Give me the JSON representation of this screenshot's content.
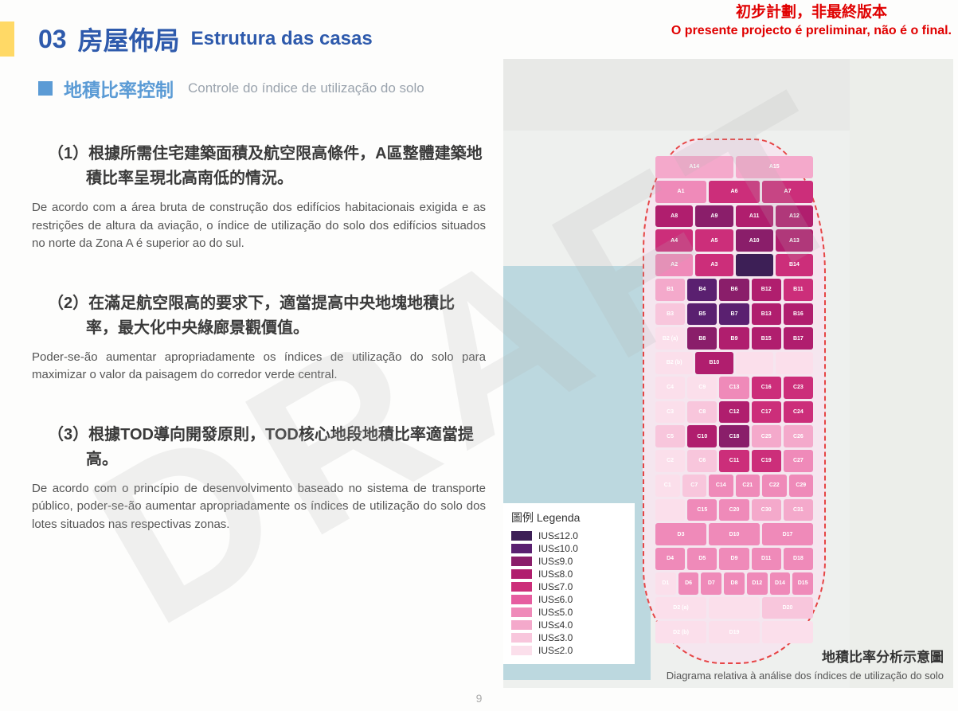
{
  "watermark": "DRAFT",
  "warning": {
    "zh": "初步計劃，非最終版本",
    "pt": "O presente projecto é preliminar, não é o final."
  },
  "title": {
    "number": "03",
    "zh": "房屋佈局",
    "pt": "Estrutura das casas"
  },
  "subtitle": {
    "zh": "地積比率控制",
    "pt": "Controle do  índice de utilização do solo"
  },
  "points": [
    {
      "zh": "（1）根據所需住宅建築面積及航空限高條件，A區整體建築地積比率呈現北高南低的情況。",
      "pt": "De acordo com a área bruta de construção dos edifícios habitacionais exigida e as restrições de altura da aviação, o índice de utilização do solo dos edifícios situados no norte da Zona A é superior ao do sul."
    },
    {
      "zh": "（2）在滿足航空限高的要求下，適當提高中央地塊地積比率，最大化中央綠廊景觀價值。",
      "pt": "Poder-se-ão aumentar apropriadamente os índices de utilização do solo para maximizar o valor da paisagem do corredor verde central."
    },
    {
      "zh": "（3）根據TOD導向開發原則，TOD核心地段地積比率適當提高。",
      "pt": "De acordo com o princípio de desenvolvimento baseado no sistema de transporte público, poder-se-ão aumentar apropriadamente os índices de utilização do solo dos lotes situados nas respectivas zonas."
    }
  ],
  "legend": {
    "title": "圖例 Legenda",
    "items": [
      {
        "label": "IUS≤12.0",
        "color": "#3d1f56"
      },
      {
        "label": "IUS≤10.0",
        "color": "#5a2070"
      },
      {
        "label": "IUS≤9.0",
        "color": "#8a1e6a"
      },
      {
        "label": "IUS≤8.0",
        "color": "#b01e6e"
      },
      {
        "label": "IUS≤7.0",
        "color": "#cc2e7a"
      },
      {
        "label": "IUS≤6.0",
        "color": "#e65da0"
      },
      {
        "label": "IUS≤5.0",
        "color": "#ef8ab9"
      },
      {
        "label": "IUS≤4.0",
        "color": "#f4a9cb"
      },
      {
        "label": "IUS≤3.0",
        "color": "#f8c6dc"
      },
      {
        "label": "IUS≤2.0",
        "color": "#fbdfeb"
      }
    ]
  },
  "map": {
    "background_water": "#bcd8df",
    "background_land": "#eceeea",
    "island_border": "#e64545",
    "plot_rows": [
      [
        {
          "l": "A14",
          "c": "#f4a9cb"
        },
        {
          "l": "A15",
          "c": "#f4a9cb"
        }
      ],
      [
        {
          "l": "A1",
          "c": "#ef8ab9"
        },
        {
          "l": "A6",
          "c": "#cc2e7a"
        },
        {
          "l": "A7",
          "c": "#cc2e7a"
        }
      ],
      [
        {
          "l": "A8",
          "c": "#b01e6e"
        },
        {
          "l": "A9",
          "c": "#8a1e6a"
        },
        {
          "l": "A11",
          "c": "#b01e6e"
        },
        {
          "l": "A12",
          "c": "#b01e6e"
        }
      ],
      [
        {
          "l": "A4",
          "c": "#cc2e7a"
        },
        {
          "l": "A5",
          "c": "#cc2e7a"
        },
        {
          "l": "A10",
          "c": "#8a1e6a"
        },
        {
          "l": "A13",
          "c": "#b01e6e"
        }
      ],
      [
        {
          "l": "A2",
          "c": "#ef8ab9"
        },
        {
          "l": "A3",
          "c": "#cc2e7a"
        },
        {
          "l": "",
          "c": "#3d1f56"
        },
        {
          "l": "B14",
          "c": "#cc2e7a"
        }
      ],
      [
        {
          "l": "B1",
          "c": "#f4a9cb"
        },
        {
          "l": "B4",
          "c": "#5a2070"
        },
        {
          "l": "B6",
          "c": "#8a1e6a"
        },
        {
          "l": "B12",
          "c": "#b01e6e"
        },
        {
          "l": "B11",
          "c": "#cc2e7a"
        }
      ],
      [
        {
          "l": "B3",
          "c": "#f8c6dc"
        },
        {
          "l": "B5",
          "c": "#5a2070"
        },
        {
          "l": "B7",
          "c": "#5a2070"
        },
        {
          "l": "B13",
          "c": "#b01e6e"
        },
        {
          "l": "B16",
          "c": "#b01e6e"
        }
      ],
      [
        {
          "l": "B2 (a)",
          "c": "#fbdfeb"
        },
        {
          "l": "B8",
          "c": "#8a1e6a"
        },
        {
          "l": "B9",
          "c": "#b01e6e"
        },
        {
          "l": "B15",
          "c": "#b01e6e"
        },
        {
          "l": "B17",
          "c": "#b01e6e"
        }
      ],
      [
        {
          "l": "B2 (b)",
          "c": "#fbdfeb"
        },
        {
          "l": "B10",
          "c": "#b01e6e"
        },
        {
          "l": "",
          "c": "#fbdfeb"
        },
        {
          "l": "",
          "c": "#fbdfeb"
        }
      ],
      [
        {
          "l": "C4",
          "c": "#fbdfeb"
        },
        {
          "l": "C9",
          "c": "#fbdfeb"
        },
        {
          "l": "C13",
          "c": "#ef8ab9"
        },
        {
          "l": "C16",
          "c": "#cc2e7a"
        },
        {
          "l": "C23",
          "c": "#cc2e7a"
        }
      ],
      [
        {
          "l": "C3",
          "c": "#fbdfeb"
        },
        {
          "l": "C8",
          "c": "#f8c6dc"
        },
        {
          "l": "C12",
          "c": "#b01e6e"
        },
        {
          "l": "C17",
          "c": "#cc2e7a"
        },
        {
          "l": "C24",
          "c": "#cc2e7a"
        }
      ],
      [
        {
          "l": "C5",
          "c": "#f8c6dc"
        },
        {
          "l": "C10",
          "c": "#b01e6e"
        },
        {
          "l": "C18",
          "c": "#8a1e6a"
        },
        {
          "l": "C25",
          "c": "#f4a9cb"
        },
        {
          "l": "C26",
          "c": "#f4a9cb"
        }
      ],
      [
        {
          "l": "C2",
          "c": "#fbdfeb"
        },
        {
          "l": "C6",
          "c": "#f8c6dc"
        },
        {
          "l": "C11",
          "c": "#cc2e7a"
        },
        {
          "l": "C19",
          "c": "#cc2e7a"
        },
        {
          "l": "C27",
          "c": "#ef8ab9"
        }
      ],
      [
        {
          "l": "C1",
          "c": "#fbdfeb"
        },
        {
          "l": "C7",
          "c": "#f8c6dc"
        },
        {
          "l": "C14",
          "c": "#ef8ab9"
        },
        {
          "l": "C21",
          "c": "#ef8ab9"
        },
        {
          "l": "C22",
          "c": "#ef8ab9"
        },
        {
          "l": "C29",
          "c": "#ef8ab9"
        }
      ],
      [
        {
          "l": "",
          "c": "#fbdfeb"
        },
        {
          "l": "C15",
          "c": "#ef8ab9"
        },
        {
          "l": "C20",
          "c": "#ef8ab9"
        },
        {
          "l": "C30",
          "c": "#f4a9cb"
        },
        {
          "l": "C31",
          "c": "#f4a9cb"
        }
      ],
      [
        {
          "l": "D3",
          "c": "#ef8ab9"
        },
        {
          "l": "D10",
          "c": "#ef8ab9"
        },
        {
          "l": "D17",
          "c": "#ef8ab9"
        }
      ],
      [
        {
          "l": "D4",
          "c": "#ef8ab9"
        },
        {
          "l": "D5",
          "c": "#ef8ab9"
        },
        {
          "l": "D9",
          "c": "#ef8ab9"
        },
        {
          "l": "D11",
          "c": "#ef8ab9"
        },
        {
          "l": "D18",
          "c": "#ef8ab9"
        }
      ],
      [
        {
          "l": "D1",
          "c": "#fbdfeb"
        },
        {
          "l": "D6",
          "c": "#ef8ab9"
        },
        {
          "l": "D7",
          "c": "#ef8ab9"
        },
        {
          "l": "D8",
          "c": "#ef8ab9"
        },
        {
          "l": "D12",
          "c": "#ef8ab9"
        },
        {
          "l": "D14",
          "c": "#ef8ab9"
        },
        {
          "l": "D15",
          "c": "#ef8ab9"
        }
      ],
      [
        {
          "l": "D2 (a)",
          "c": "#fbdfeb"
        },
        {
          "l": "",
          "c": "#fbdfeb"
        },
        {
          "l": "D20",
          "c": "#f8c6dc"
        }
      ],
      [
        {
          "l": "D2 (b)",
          "c": "#fbdfeb"
        },
        {
          "l": "D19",
          "c": "#fbdfeb"
        },
        {
          "l": "",
          "c": "#fbdfeb"
        }
      ]
    ],
    "caption_zh": "地積比率分析示意圖",
    "caption_pt": "Diagrama relativa à análise dos índices de utilização do solo"
  },
  "page_number": "9"
}
